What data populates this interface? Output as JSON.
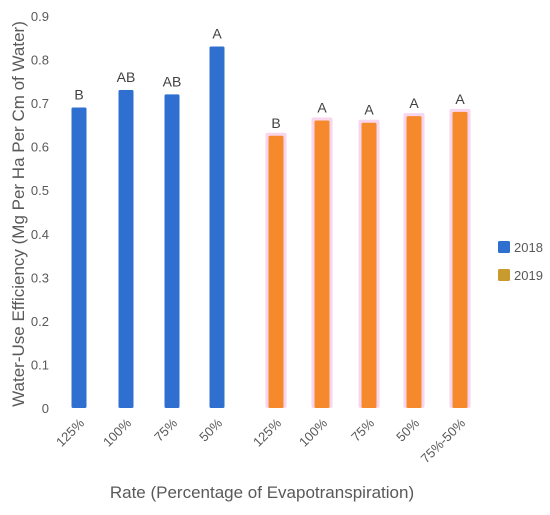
{
  "chart_data": {
    "type": "bar",
    "title": "",
    "xlabel": "Rate (Percentage of Evapotranspiration)",
    "ylabel": "Water-Use Efficiency (Mg Per Ha Per Cm of Water)",
    "ylim": [
      0,
      0.9
    ],
    "yticks": [
      "0",
      "0.1",
      "0.2",
      "0.3",
      "0.4",
      "0.5",
      "0.6",
      "0.7",
      "0.8",
      "0.9"
    ],
    "grid": false,
    "legend_position": "right",
    "categories": [
      "125%",
      "100%",
      "75%",
      "50%",
      "125%",
      "100%",
      "75%",
      "50%",
      "75%-50%"
    ],
    "bars": [
      {
        "category": "125%",
        "series": "2018",
        "value": 0.69,
        "label": "B"
      },
      {
        "category": "100%",
        "series": "2018",
        "value": 0.73,
        "label": "AB"
      },
      {
        "category": "75%",
        "series": "2018",
        "value": 0.72,
        "label": "AB"
      },
      {
        "category": "50%",
        "series": "2018",
        "value": 0.83,
        "label": "A"
      },
      {
        "category": "125%",
        "series": "2019",
        "value": 0.625,
        "label": "B"
      },
      {
        "category": "100%",
        "series": "2019",
        "value": 0.66,
        "label": "A"
      },
      {
        "category": "75%",
        "series": "2019",
        "value": 0.655,
        "label": "A"
      },
      {
        "category": "50%",
        "series": "2019",
        "value": 0.67,
        "label": "A"
      },
      {
        "category": "75%-50%",
        "series": "2019",
        "value": 0.68,
        "label": "A"
      }
    ],
    "series": [
      {
        "name": "2018",
        "color": "#2f6fd0",
        "legend_swatch_color": "#2f6fd0"
      },
      {
        "name": "2019",
        "color": "#f5892b",
        "legend_swatch_color": "#c99a2e"
      }
    ]
  }
}
